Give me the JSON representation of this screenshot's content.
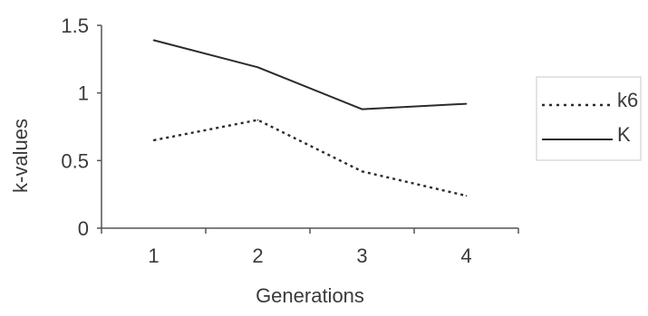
{
  "chart_data": {
    "type": "line",
    "title": "",
    "xlabel": "Generations",
    "ylabel": "k-values",
    "categories": [
      "1",
      "2",
      "3",
      "4"
    ],
    "ylim": [
      0,
      1.5
    ],
    "yticks": [
      "0",
      "0.5",
      "1",
      "1.5"
    ],
    "grid": false,
    "legend_position": "right",
    "series": [
      {
        "name": "k6",
        "values": [
          0.65,
          0.8,
          0.42,
          0.24
        ],
        "style": "dotted",
        "color": "#2b2b2b"
      },
      {
        "name": "K",
        "values": [
          1.39,
          1.19,
          0.88,
          0.92
        ],
        "style": "solid",
        "color": "#2b2b2b"
      }
    ]
  }
}
